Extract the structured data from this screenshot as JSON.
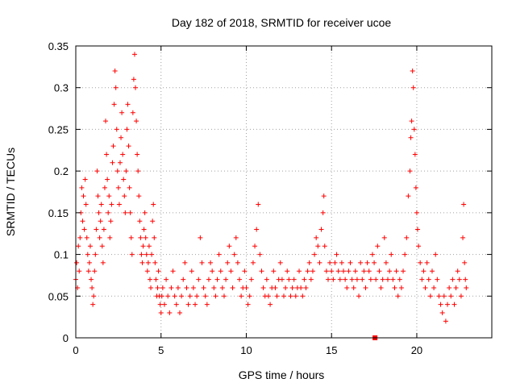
{
  "chart_data": {
    "type": "scatter",
    "title": "Day 182 of 2018, SRMTID for receiver ucoe",
    "xlabel": "GPS time / hours",
    "ylabel": "SRMTID / TECUs",
    "xlim": [
      0,
      24.4
    ],
    "ylim": [
      0,
      0.35
    ],
    "xticks": [
      0,
      5,
      10,
      15,
      20
    ],
    "xtick_labels": [
      "0",
      "5",
      "10",
      "15",
      "20"
    ],
    "yticks": [
      0,
      0.05,
      0.1,
      0.15,
      0.2,
      0.25,
      0.3,
      0.35
    ],
    "ytick_labels": [
      "0",
      "0.05",
      "0.1",
      "0.15",
      "0.2",
      "0.25",
      "0.3",
      "0.35"
    ],
    "grid": true,
    "marker": "plus",
    "color": "#ff0000",
    "series": [
      {
        "name": "SRMTID",
        "points": [
          [
            0.0,
            0.07
          ],
          [
            0.05,
            0.09
          ],
          [
            0.1,
            0.06
          ],
          [
            0.15,
            0.11
          ],
          [
            0.2,
            0.08
          ],
          [
            0.25,
            0.12
          ],
          [
            0.3,
            0.15
          ],
          [
            0.35,
            0.18
          ],
          [
            0.4,
            0.14
          ],
          [
            0.45,
            0.17
          ],
          [
            0.5,
            0.13
          ],
          [
            0.55,
            0.19
          ],
          [
            0.6,
            0.16
          ],
          [
            0.65,
            0.12
          ],
          [
            0.7,
            0.1
          ],
          [
            0.75,
            0.08
          ],
          [
            0.8,
            0.09
          ],
          [
            0.85,
            0.11
          ],
          [
            0.9,
            0.07
          ],
          [
            0.95,
            0.06
          ],
          [
            1.0,
            0.04
          ],
          [
            1.05,
            0.05
          ],
          [
            1.1,
            0.08
          ],
          [
            1.15,
            0.1
          ],
          [
            1.2,
            0.13
          ],
          [
            1.25,
            0.2
          ],
          [
            1.3,
            0.17
          ],
          [
            1.35,
            0.15
          ],
          [
            1.4,
            0.12
          ],
          [
            1.45,
            0.14
          ],
          [
            1.5,
            0.16
          ],
          [
            1.55,
            0.11
          ],
          [
            1.6,
            0.09
          ],
          [
            1.65,
            0.13
          ],
          [
            1.7,
            0.18
          ],
          [
            1.75,
            0.26
          ],
          [
            1.8,
            0.22
          ],
          [
            1.85,
            0.19
          ],
          [
            1.9,
            0.15
          ],
          [
            1.95,
            0.17
          ],
          [
            2.0,
            0.12
          ],
          [
            2.05,
            0.14
          ],
          [
            2.1,
            0.16
          ],
          [
            2.15,
            0.21
          ],
          [
            2.2,
            0.23
          ],
          [
            2.25,
            0.28
          ],
          [
            2.3,
            0.32
          ],
          [
            2.35,
            0.3
          ],
          [
            2.4,
            0.25
          ],
          [
            2.45,
            0.2
          ],
          [
            2.5,
            0.18
          ],
          [
            2.55,
            0.16
          ],
          [
            2.6,
            0.21
          ],
          [
            2.65,
            0.24
          ],
          [
            2.7,
            0.27
          ],
          [
            2.75,
            0.22
          ],
          [
            2.8,
            0.19
          ],
          [
            2.85,
            0.17
          ],
          [
            2.9,
            0.15
          ],
          [
            2.95,
            0.2
          ],
          [
            3.0,
            0.25
          ],
          [
            3.05,
            0.28
          ],
          [
            3.1,
            0.23
          ],
          [
            3.15,
            0.18
          ],
          [
            3.2,
            0.15
          ],
          [
            3.25,
            0.12
          ],
          [
            3.3,
            0.1
          ],
          [
            3.35,
            0.27
          ],
          [
            3.4,
            0.31
          ],
          [
            3.45,
            0.34
          ],
          [
            3.5,
            0.3
          ],
          [
            3.55,
            0.26
          ],
          [
            3.6,
            0.22
          ],
          [
            3.65,
            0.2
          ],
          [
            3.7,
            0.17
          ],
          [
            3.75,
            0.14
          ],
          [
            3.8,
            0.12
          ],
          [
            3.85,
            0.1
          ],
          [
            3.9,
            0.09
          ],
          [
            3.95,
            0.11
          ],
          [
            4.0,
            0.13
          ],
          [
            4.05,
            0.15
          ],
          [
            4.1,
            0.12
          ],
          [
            4.15,
            0.1
          ],
          [
            4.2,
            0.08
          ],
          [
            4.25,
            0.09
          ],
          [
            4.3,
            0.11
          ],
          [
            4.35,
            0.07
          ],
          [
            4.4,
            0.06
          ],
          [
            4.45,
            0.1
          ],
          [
            4.5,
            0.14
          ],
          [
            4.55,
            0.16
          ],
          [
            4.6,
            0.12
          ],
          [
            4.65,
            0.09
          ],
          [
            4.7,
            0.07
          ],
          [
            4.75,
            0.05
          ],
          [
            4.8,
            0.06
          ],
          [
            4.85,
            0.08
          ],
          [
            4.9,
            0.05
          ],
          [
            4.95,
            0.04
          ],
          [
            5.0,
            0.03
          ],
          [
            5.05,
            0.05
          ],
          [
            5.1,
            0.06
          ],
          [
            5.2,
            0.04
          ],
          [
            5.3,
            0.07
          ],
          [
            5.4,
            0.05
          ],
          [
            5.5,
            0.03
          ],
          [
            5.6,
            0.06
          ],
          [
            5.7,
            0.08
          ],
          [
            5.8,
            0.05
          ],
          [
            5.9,
            0.04
          ],
          [
            6.0,
            0.06
          ],
          [
            6.1,
            0.03
          ],
          [
            6.2,
            0.05
          ],
          [
            6.3,
            0.07
          ],
          [
            6.4,
            0.09
          ],
          [
            6.5,
            0.06
          ],
          [
            6.6,
            0.04
          ],
          [
            6.7,
            0.05
          ],
          [
            6.8,
            0.08
          ],
          [
            6.9,
            0.06
          ],
          [
            7.0,
            0.04
          ],
          [
            7.1,
            0.05
          ],
          [
            7.2,
            0.07
          ],
          [
            7.3,
            0.12
          ],
          [
            7.4,
            0.09
          ],
          [
            7.5,
            0.06
          ],
          [
            7.6,
            0.05
          ],
          [
            7.7,
            0.04
          ],
          [
            7.8,
            0.07
          ],
          [
            7.9,
            0.09
          ],
          [
            8.0,
            0.08
          ],
          [
            8.1,
            0.06
          ],
          [
            8.2,
            0.05
          ],
          [
            8.3,
            0.07
          ],
          [
            8.4,
            0.1
          ],
          [
            8.5,
            0.08
          ],
          [
            8.6,
            0.06
          ],
          [
            8.7,
            0.05
          ],
          [
            8.8,
            0.07
          ],
          [
            8.9,
            0.09
          ],
          [
            9.0,
            0.11
          ],
          [
            9.1,
            0.08
          ],
          [
            9.2,
            0.06
          ],
          [
            9.3,
            0.1
          ],
          [
            9.4,
            0.12
          ],
          [
            9.5,
            0.09
          ],
          [
            9.6,
            0.07
          ],
          [
            9.7,
            0.05
          ],
          [
            9.8,
            0.06
          ],
          [
            9.9,
            0.08
          ],
          [
            10.0,
            0.06
          ],
          [
            10.1,
            0.04
          ],
          [
            10.2,
            0.05
          ],
          [
            10.3,
            0.07
          ],
          [
            10.4,
            0.09
          ],
          [
            10.5,
            0.11
          ],
          [
            10.6,
            0.13
          ],
          [
            10.7,
            0.16
          ],
          [
            10.8,
            0.1
          ],
          [
            10.9,
            0.08
          ],
          [
            11.0,
            0.06
          ],
          [
            11.1,
            0.05
          ],
          [
            11.2,
            0.07
          ],
          [
            11.3,
            0.05
          ],
          [
            11.4,
            0.04
          ],
          [
            11.5,
            0.06
          ],
          [
            11.6,
            0.08
          ],
          [
            11.7,
            0.06
          ],
          [
            11.8,
            0.05
          ],
          [
            11.9,
            0.07
          ],
          [
            12.0,
            0.09
          ],
          [
            12.1,
            0.07
          ],
          [
            12.2,
            0.05
          ],
          [
            12.3,
            0.06
          ],
          [
            12.4,
            0.08
          ],
          [
            12.5,
            0.07
          ],
          [
            12.6,
            0.05
          ],
          [
            12.7,
            0.06
          ],
          [
            12.8,
            0.07
          ],
          [
            12.9,
            0.05
          ],
          [
            13.0,
            0.06
          ],
          [
            13.1,
            0.08
          ],
          [
            13.2,
            0.06
          ],
          [
            13.3,
            0.05
          ],
          [
            13.4,
            0.07
          ],
          [
            13.5,
            0.06
          ],
          [
            13.6,
            0.08
          ],
          [
            13.7,
            0.09
          ],
          [
            13.8,
            0.07
          ],
          [
            13.9,
            0.08
          ],
          [
            14.0,
            0.1
          ],
          [
            14.1,
            0.12
          ],
          [
            14.2,
            0.11
          ],
          [
            14.3,
            0.09
          ],
          [
            14.4,
            0.13
          ],
          [
            14.5,
            0.15
          ],
          [
            14.55,
            0.17
          ],
          [
            14.6,
            0.11
          ],
          [
            14.7,
            0.08
          ],
          [
            14.8,
            0.07
          ],
          [
            14.9,
            0.09
          ],
          [
            15.0,
            0.08
          ],
          [
            15.1,
            0.07
          ],
          [
            15.2,
            0.09
          ],
          [
            15.3,
            0.1
          ],
          [
            15.4,
            0.08
          ],
          [
            15.5,
            0.07
          ],
          [
            15.6,
            0.09
          ],
          [
            15.7,
            0.08
          ],
          [
            15.8,
            0.07
          ],
          [
            15.9,
            0.06
          ],
          [
            16.0,
            0.08
          ],
          [
            16.1,
            0.09
          ],
          [
            16.2,
            0.07
          ],
          [
            16.3,
            0.06
          ],
          [
            16.4,
            0.08
          ],
          [
            16.5,
            0.07
          ],
          [
            16.6,
            0.05
          ],
          [
            16.7,
            0.09
          ],
          [
            16.8,
            0.07
          ],
          [
            16.9,
            0.08
          ],
          [
            17.0,
            0.06
          ],
          [
            17.1,
            0.09
          ],
          [
            17.2,
            0.08
          ],
          [
            17.3,
            0.07
          ],
          [
            17.4,
            0.1
          ],
          [
            17.5,
            0.09
          ],
          [
            17.6,
            0.07
          ],
          [
            17.7,
            0.11
          ],
          [
            17.8,
            0.08
          ],
          [
            17.9,
            0.06
          ],
          [
            18.0,
            0.07
          ],
          [
            18.1,
            0.12
          ],
          [
            18.2,
            0.09
          ],
          [
            18.3,
            0.07
          ],
          [
            18.4,
            0.08
          ],
          [
            18.5,
            0.1
          ],
          [
            18.6,
            0.07
          ],
          [
            18.7,
            0.06
          ],
          [
            18.8,
            0.08
          ],
          [
            18.9,
            0.05
          ],
          [
            19.0,
            0.07
          ],
          [
            19.1,
            0.06
          ],
          [
            19.2,
            0.08
          ],
          [
            19.3,
            0.1
          ],
          [
            19.4,
            0.12
          ],
          [
            19.5,
            0.17
          ],
          [
            19.6,
            0.2
          ],
          [
            19.65,
            0.24
          ],
          [
            19.7,
            0.26
          ],
          [
            19.75,
            0.32
          ],
          [
            19.8,
            0.3
          ],
          [
            19.85,
            0.25
          ],
          [
            19.9,
            0.22
          ],
          [
            19.95,
            0.18
          ],
          [
            20.0,
            0.15
          ],
          [
            20.05,
            0.13
          ],
          [
            20.1,
            0.11
          ],
          [
            20.2,
            0.09
          ],
          [
            20.3,
            0.07
          ],
          [
            20.4,
            0.08
          ],
          [
            20.5,
            0.06
          ],
          [
            20.6,
            0.09
          ],
          [
            20.7,
            0.07
          ],
          [
            20.8,
            0.05
          ],
          [
            20.9,
            0.08
          ],
          [
            21.0,
            0.06
          ],
          [
            21.1,
            0.1
          ],
          [
            21.2,
            0.07
          ],
          [
            21.3,
            0.05
          ],
          [
            21.4,
            0.04
          ],
          [
            21.5,
            0.03
          ],
          [
            21.6,
            0.05
          ],
          [
            21.7,
            0.02
          ],
          [
            21.8,
            0.04
          ],
          [
            21.9,
            0.06
          ],
          [
            22.0,
            0.05
          ],
          [
            22.1,
            0.07
          ],
          [
            22.2,
            0.04
          ],
          [
            22.3,
            0.06
          ],
          [
            22.4,
            0.08
          ],
          [
            22.5,
            0.07
          ],
          [
            22.6,
            0.05
          ],
          [
            22.7,
            0.12
          ],
          [
            22.75,
            0.16
          ],
          [
            22.8,
            0.09
          ],
          [
            22.85,
            0.07
          ],
          [
            22.9,
            0.06
          ]
        ]
      }
    ],
    "annotations": [
      {
        "type": "square-marker",
        "x": 17.55,
        "y": 0.0
      }
    ]
  }
}
